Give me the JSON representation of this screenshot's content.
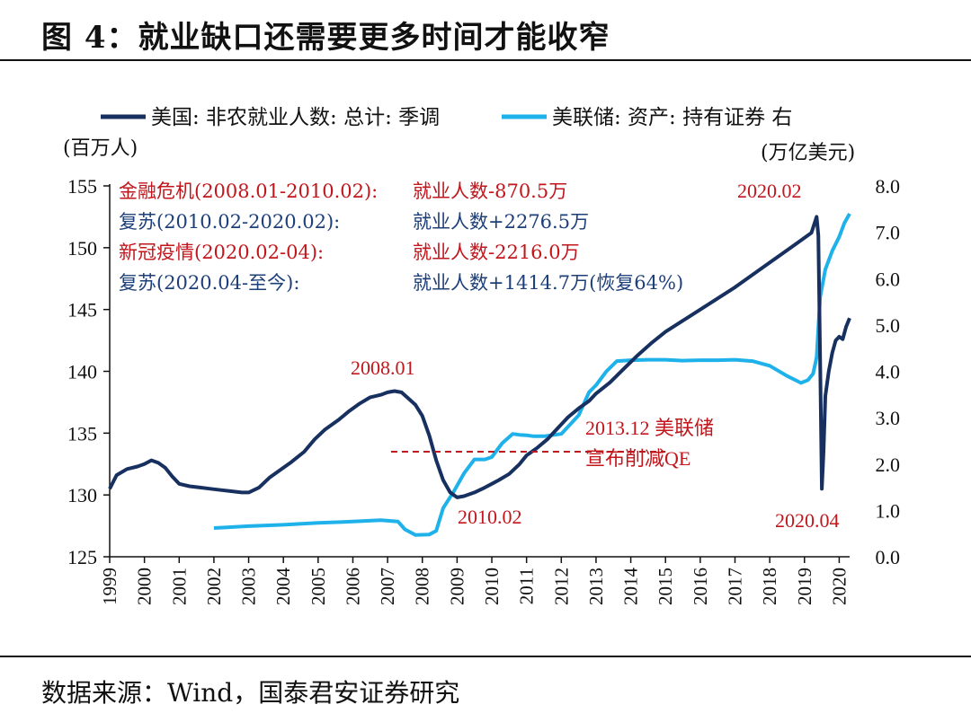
{
  "title": "图 4：就业缺口还需要更多时间才能收窄",
  "source": "数据来源：Wind，国泰君安证券研究",
  "chart_data": {
    "type": "line",
    "colors": {
      "payroll": "#17305f",
      "fed": "#1fb1ea",
      "red": "#c0161c",
      "blue": "#1d3f7a"
    },
    "legend": [
      "美国: 非农就业人数: 总计: 季调",
      "美联储: 资产: 持有证券 右"
    ],
    "y_left_label": "(百万人)",
    "y_right_label": "(万亿美元)",
    "y_left_lim": [
      125,
      155
    ],
    "y_right_lim": [
      0.0,
      8.0
    ],
    "y_left_ticks": [
      125,
      130,
      135,
      140,
      145,
      150,
      155
    ],
    "y_right_ticks": [
      "0.0",
      "1.0",
      "2.0",
      "3.0",
      "4.0",
      "5.0",
      "6.0",
      "7.0",
      "8.0"
    ],
    "x_lim": [
      1999.0,
      2020.3
    ],
    "x_ticks": [
      "1999",
      "2000",
      "2001",
      "2002",
      "2003",
      "2004",
      "2005",
      "2006",
      "2007",
      "2008",
      "2009",
      "2010",
      "2011",
      "2012",
      "2013",
      "2014",
      "2015",
      "2016",
      "2017",
      "2018",
      "2019",
      "2020"
    ],
    "series": [
      {
        "name": "美国: 非农就业人数: 总计: 季调",
        "axis": "left",
        "x": [
          1999.0,
          1999.2,
          1999.5,
          1999.8,
          2000.0,
          2000.2,
          2000.4,
          2000.6,
          2000.8,
          2001.0,
          2001.3,
          2001.6,
          2001.9,
          2002.2,
          2002.5,
          2002.8,
          2003.0,
          2003.3,
          2003.6,
          2003.9,
          2004.2,
          2004.6,
          2004.9,
          2005.2,
          2005.6,
          2005.9,
          2006.2,
          2006.5,
          2006.8,
          2007.0,
          2007.2,
          2007.4,
          2007.6,
          2007.8,
          2008.0,
          2008.2,
          2008.4,
          2008.6,
          2008.8,
          2009.0,
          2009.2,
          2009.5,
          2009.8,
          2010.0,
          2010.2,
          2010.5,
          2010.8,
          2011.0,
          2011.3,
          2011.6,
          2011.9,
          2012.2,
          2012.5,
          2012.8,
          2013.0,
          2013.4,
          2013.8,
          2014.2,
          2014.6,
          2015.0,
          2015.5,
          2016.0,
          2016.5,
          2017.0,
          2017.5,
          2018.0,
          2018.5,
          2018.9,
          2019.2,
          2019.35,
          2019.4,
          2019.45,
          2019.5,
          2019.55,
          2019.6,
          2019.7,
          2019.8,
          2019.9,
          2020.0,
          2020.1,
          2020.2,
          2020.3
        ],
        "values": [
          130.5,
          131.6,
          132.1,
          132.3,
          132.5,
          132.8,
          132.6,
          132.2,
          131.5,
          130.9,
          130.7,
          130.6,
          130.5,
          130.4,
          130.3,
          130.2,
          130.2,
          130.6,
          131.4,
          132.0,
          132.6,
          133.5,
          134.5,
          135.3,
          136.1,
          136.8,
          137.4,
          137.9,
          138.1,
          138.3,
          138.4,
          138.3,
          137.8,
          137.3,
          136.4,
          134.8,
          132.8,
          131.2,
          130.2,
          129.8,
          129.9,
          130.2,
          130.6,
          130.9,
          131.2,
          131.7,
          132.5,
          133.2,
          133.8,
          134.5,
          135.4,
          136.3,
          137.0,
          137.6,
          138.2,
          139.1,
          140.2,
          141.3,
          142.3,
          143.2,
          144.1,
          145.0,
          145.9,
          146.8,
          147.8,
          148.8,
          149.8,
          150.6,
          151.2,
          152.5,
          151.0,
          141.0,
          130.5,
          133.5,
          138.0,
          140.0,
          141.5,
          142.5,
          142.8,
          142.6,
          143.6,
          144.3
        ]
      },
      {
        "name": "美联储: 资产: 持有证券 右",
        "axis": "right",
        "x": [
          2002.0,
          2003.0,
          2004.0,
          2005.0,
          2006.0,
          2006.8,
          2007.3,
          2007.5,
          2007.8,
          2008.2,
          2008.4,
          2008.6,
          2008.9,
          2009.2,
          2009.5,
          2009.8,
          2010.0,
          2010.3,
          2010.6,
          2010.8,
          2011.0,
          2011.2,
          2011.5,
          2012.0,
          2012.5,
          2012.8,
          2013.0,
          2013.3,
          2013.6,
          2014.0,
          2014.5,
          2015.0,
          2015.5,
          2016.0,
          2016.5,
          2017.0,
          2017.5,
          2018.0,
          2018.5,
          2018.9,
          2019.1,
          2019.25,
          2019.35,
          2019.45,
          2019.6,
          2019.8,
          2020.0,
          2020.15,
          2020.3
        ],
        "values": [
          0.62,
          0.66,
          0.69,
          0.73,
          0.76,
          0.79,
          0.76,
          0.59,
          0.47,
          0.48,
          0.56,
          1.05,
          1.4,
          1.8,
          2.1,
          2.1,
          2.15,
          2.45,
          2.65,
          2.63,
          2.62,
          2.6,
          2.6,
          2.65,
          3.05,
          3.55,
          3.7,
          4.0,
          4.22,
          4.24,
          4.25,
          4.25,
          4.23,
          4.24,
          4.24,
          4.25,
          4.22,
          4.12,
          3.9,
          3.75,
          3.81,
          3.95,
          4.3,
          5.6,
          6.2,
          6.6,
          6.9,
          7.2,
          7.4
        ]
      }
    ],
    "annotations": [
      {
        "text": "金融危机(2008.01-2010.02):",
        "value": "就业人数-870.5万",
        "color": "red"
      },
      {
        "text": "复苏(2010.02-2020.02):",
        "value": "就业人数+2276.5万",
        "color": "blue"
      },
      {
        "text": "新冠疫情(2020.02-04):",
        "value": "就业人数-2216.0万",
        "color": "red"
      },
      {
        "text": "复苏(2020.04-至今):",
        "value": "就业人数+1414.7万(恢复64%)",
        "color": "blue"
      }
    ],
    "point_labels": {
      "p2008": "2008.01",
      "p2010": "2010.02",
      "p2020a": "2020.02",
      "p2020b": "2020.04",
      "qe1": "2013.12 美联储",
      "qe2": "宣布削减QE"
    },
    "ref_line": {
      "x_from": 2007.1,
      "x_to": 2015.0,
      "y": 133.5
    }
  }
}
